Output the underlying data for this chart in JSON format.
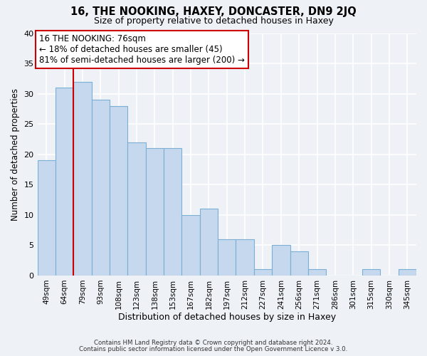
{
  "title": "16, THE NOOKING, HAXEY, DONCASTER, DN9 2JQ",
  "subtitle": "Size of property relative to detached houses in Haxey",
  "xlabel": "Distribution of detached houses by size in Haxey",
  "ylabel": "Number of detached properties",
  "footnote1": "Contains HM Land Registry data © Crown copyright and database right 2024.",
  "footnote2": "Contains public sector information licensed under the Open Government Licence v 3.0.",
  "bin_labels": [
    "49sqm",
    "64sqm",
    "79sqm",
    "93sqm",
    "108sqm",
    "123sqm",
    "138sqm",
    "153sqm",
    "167sqm",
    "182sqm",
    "197sqm",
    "212sqm",
    "227sqm",
    "241sqm",
    "256sqm",
    "271sqm",
    "286sqm",
    "301sqm",
    "315sqm",
    "330sqm",
    "345sqm"
  ],
  "bin_values": [
    19,
    31,
    32,
    29,
    28,
    22,
    21,
    21,
    10,
    11,
    6,
    6,
    1,
    5,
    4,
    1,
    0,
    0,
    1,
    0,
    1
  ],
  "bar_color": "#c5d8ed",
  "bar_edge_color": "#7bafd4",
  "vline_color": "#cc0000",
  "annotation_title": "16 THE NOOKING: 76sqm",
  "annotation_line1": "← 18% of detached houses are smaller (45)",
  "annotation_line2": "81% of semi-detached houses are larger (200) →",
  "annotation_box_color": "white",
  "annotation_box_edge": "#cc0000",
  "ylim": [
    0,
    40
  ],
  "yticks": [
    0,
    5,
    10,
    15,
    20,
    25,
    30,
    35,
    40
  ],
  "background_color": "#eef2f7",
  "grid_color": "white",
  "title_fontsize": 10.5,
  "subtitle_fontsize": 9
}
